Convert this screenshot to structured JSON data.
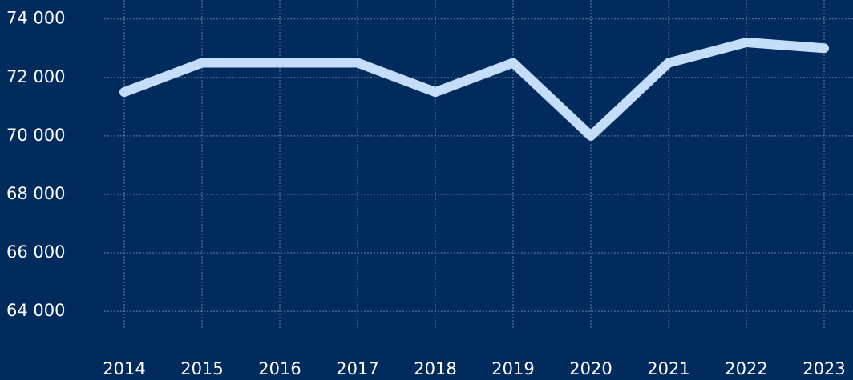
{
  "chart_data": {
    "type": "line",
    "categories": [
      "2014",
      "2015",
      "2016",
      "2017",
      "2018",
      "2019",
      "2020",
      "2021",
      "2022",
      "2023"
    ],
    "values": [
      71500,
      72500,
      72500,
      72500,
      71500,
      72500,
      70000,
      72500,
      73200,
      73000
    ],
    "color": "#c4ddf8",
    "ylim": [
      63400,
      74650
    ],
    "yticks": [
      {
        "value": 64000,
        "label": "64 000"
      },
      {
        "value": 66000,
        "label": "66 000"
      },
      {
        "value": 68000,
        "label": "68 000"
      },
      {
        "value": 70000,
        "label": "70 000"
      },
      {
        "value": 72000,
        "label": "72 000"
      },
      {
        "value": 74000,
        "label": "74 000"
      }
    ],
    "grid": true
  }
}
